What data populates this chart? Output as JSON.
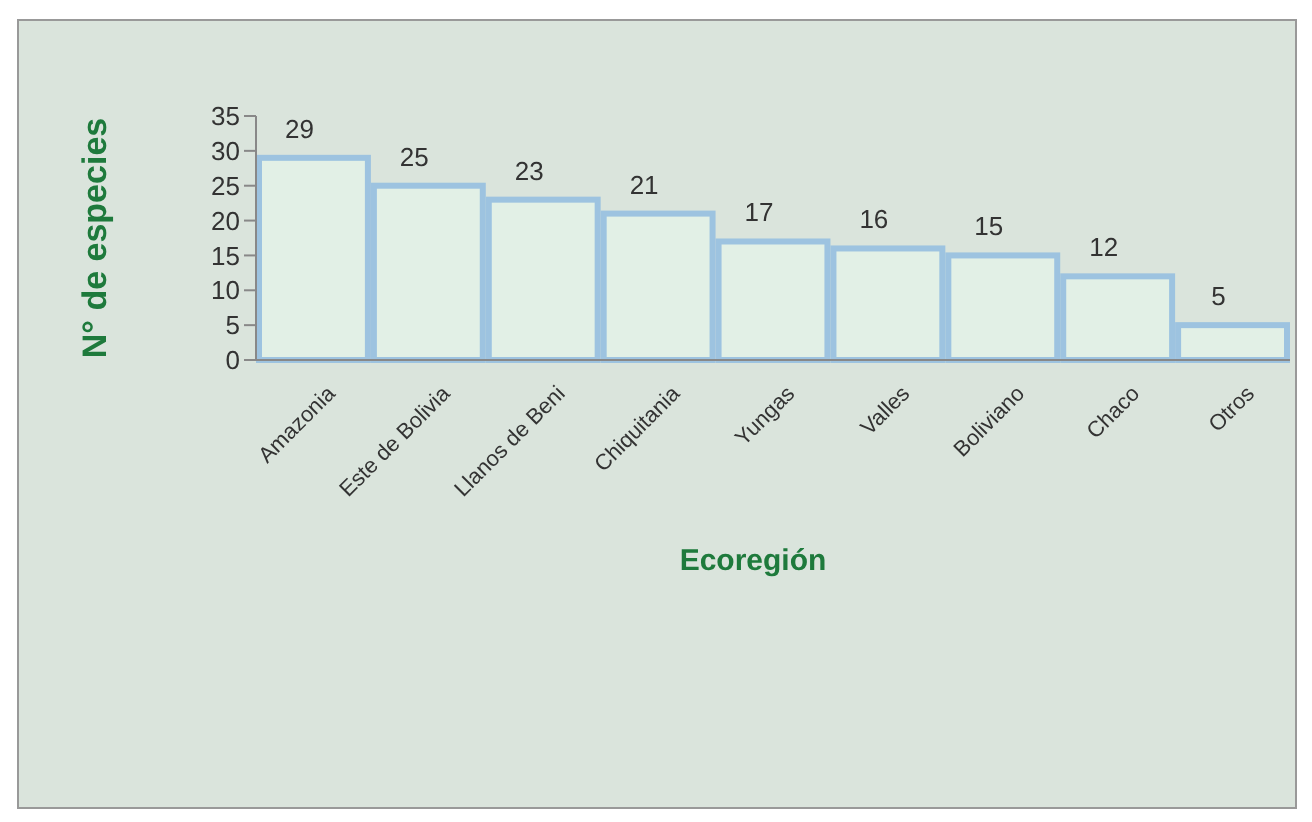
{
  "chart_data": {
    "type": "bar",
    "xlabel": "Ecoregión",
    "ylabel": "N° de especies",
    "categories": [
      "Amazonia",
      "Este de Bolivia",
      "Llanos de Beni",
      "Chiquitania",
      "Yungas",
      "Valles",
      "Boliviano",
      "Chaco",
      "Otros"
    ],
    "values": [
      29,
      25,
      23,
      21,
      17,
      16,
      15,
      12,
      5
    ],
    "color": "#e2f0e6",
    "ylim": [
      0,
      35
    ],
    "yticks": [
      0,
      5,
      10,
      15,
      20,
      25,
      30,
      35
    ],
    "data_labels": true
  }
}
